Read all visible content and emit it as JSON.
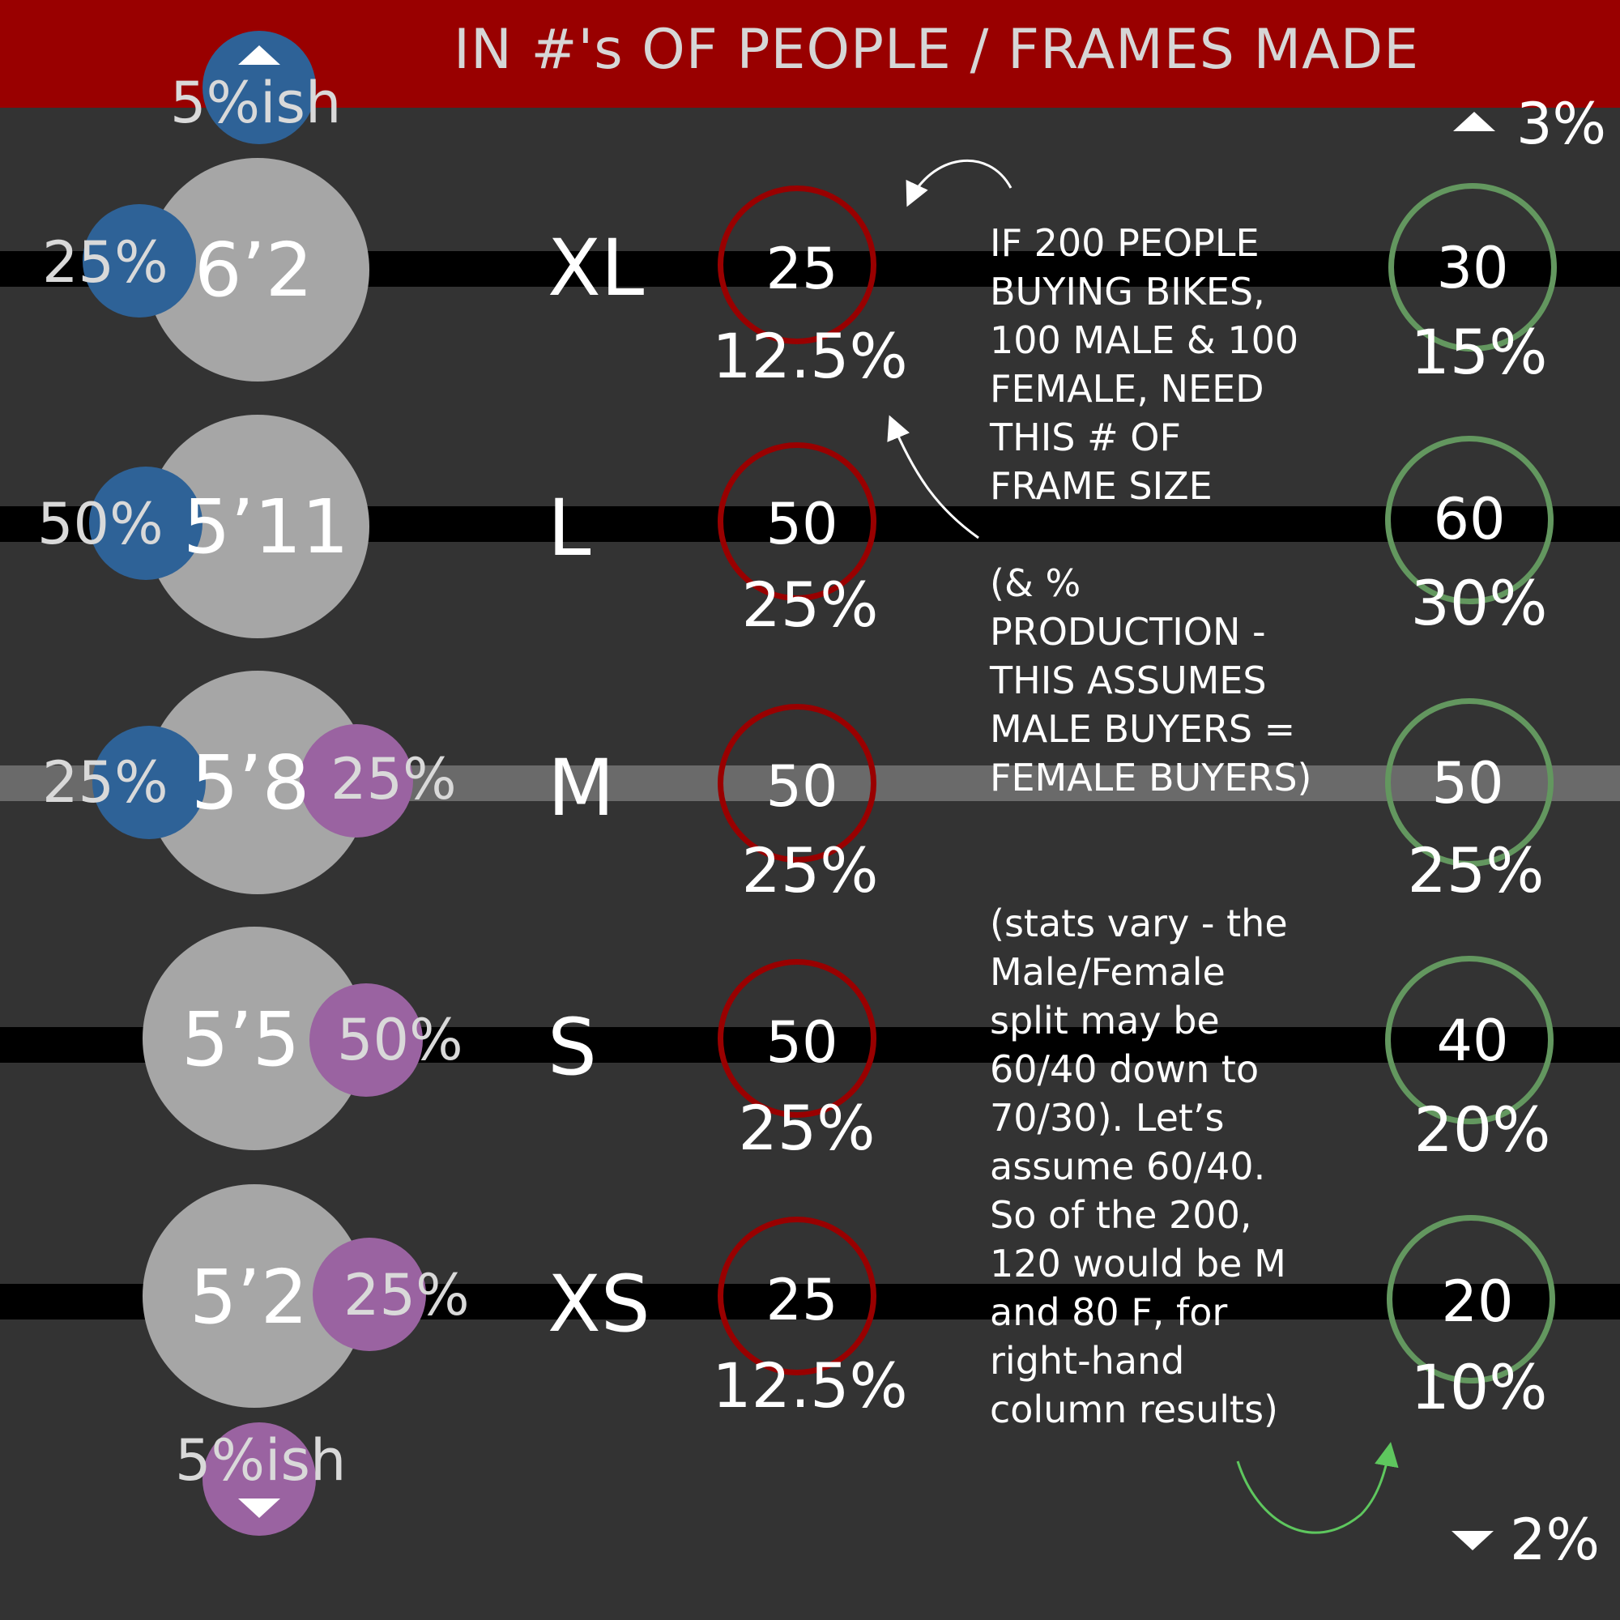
{
  "title": "IN #'s OF PEOPLE / FRAMES MADE",
  "top_overflow_label": "5%ish",
  "bottom_overflow_label": "5%ish",
  "top_right_label": "3%",
  "bottom_right_label": "2%",
  "rows": [
    {
      "height": "6’2",
      "male_pct": "25%",
      "female_pct": "",
      "size": "XL",
      "count": "25",
      "count_pct": "12.5%",
      "prod": "30",
      "prod_pct": "15%"
    },
    {
      "height": "5’11",
      "male_pct": "50%",
      "female_pct": "",
      "size": "L",
      "count": "50",
      "count_pct": "25%",
      "prod": "60",
      "prod_pct": "30%"
    },
    {
      "height": "5’8",
      "male_pct": "25%",
      "female_pct": "25%",
      "size": "M",
      "count": "50",
      "count_pct": "25%",
      "prod": "50",
      "prod_pct": "25%"
    },
    {
      "height": "5’5",
      "male_pct": "",
      "female_pct": "50%",
      "size": "S",
      "count": "50",
      "count_pct": "25%",
      "prod": "40",
      "prod_pct": "20%"
    },
    {
      "height": "5’2",
      "male_pct": "",
      "female_pct": "25%",
      "size": "XS",
      "count": "25",
      "count_pct": "12.5%",
      "prod": "20",
      "prod_pct": "10%"
    }
  ],
  "notes": {
    "note1": "IF 200 PEOPLE BUYING BIKES, 100 MALE & 100 FEMALE, NEED THIS # OF FRAME SIZE",
    "note2": "(& % PRODUCTION - THIS ASSUMES MALE BUYERS = FEMALE BUYERS)",
    "note3": "(stats vary - the Male/Female split may be 60/40 down to 70/30). Let’s assume 60/40. So of the 200, 120 would be M and 80 F, for right-hand column results)"
  },
  "colors": {
    "background": "#333333",
    "header": "#990000",
    "male": "#2e6297",
    "female": "#9a63a1",
    "height_circle": "#a6a6a6",
    "count_ring": "#990000",
    "production_ring": "#63975f"
  }
}
